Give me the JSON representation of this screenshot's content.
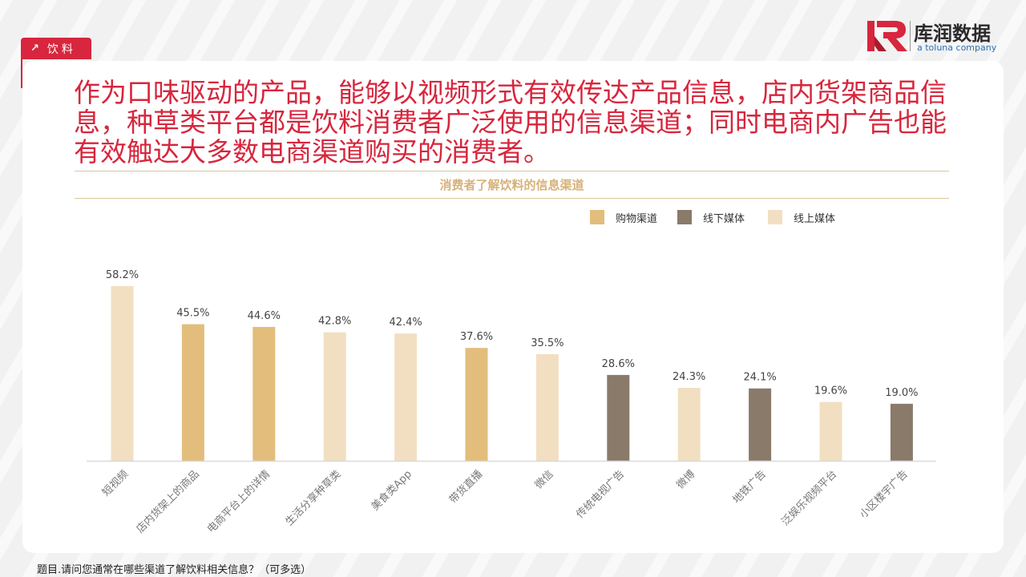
{
  "tag": {
    "label": "饮料"
  },
  "logo": {
    "brand": "库润数据",
    "sub": "a toluna company"
  },
  "headline": "作为口味驱动的产品，能够以视频形式有效传达产品信息，店内货架商品信息，种草类平台都是饮料消费者广泛使用的信息渠道；同时电商内广告也能有效触达大多数电商渠道购买的消费者。",
  "footnote": "题目.请问您通常在哪些渠道了解饮料相关信息？（可多选）",
  "colors": {
    "accent": "#d7263d",
    "shopping": "#e2bd7c",
    "offline": "#8a7a6a",
    "online": "#f2dfc2"
  },
  "chart_data": {
    "type": "bar",
    "title": "消费者了解饮料的信息渠道",
    "legend": [
      {
        "name": "购物渠道",
        "color": "#e2bd7c"
      },
      {
        "name": "线下媒体",
        "color": "#8a7a6a"
      },
      {
        "name": "线上媒体",
        "color": "#f2dfc2"
      }
    ],
    "categories": [
      "短视频",
      "店内货架上的商品",
      "电商平台上的详情",
      "生活分享种草类",
      "美食类App",
      "带货直播",
      "微信",
      "传统电视广告",
      "微博",
      "地铁广告",
      "泛娱乐视频平台",
      "小区楼宇广告"
    ],
    "values": [
      58.2,
      45.5,
      44.6,
      42.8,
      42.4,
      37.6,
      35.5,
      28.6,
      24.3,
      24.1,
      19.6,
      19.0
    ],
    "labels": [
      "58.2%",
      "45.5%",
      "44.6%",
      "42.8%",
      "42.4%",
      "37.6%",
      "35.5%",
      "28.6%",
      "24.3%",
      "24.1%",
      "19.6%",
      "19.0%"
    ],
    "groups": [
      "线上媒体",
      "购物渠道",
      "购物渠道",
      "线上媒体",
      "线上媒体",
      "购物渠道",
      "线上媒体",
      "线下媒体",
      "线上媒体",
      "线下媒体",
      "线上媒体",
      "线下媒体"
    ],
    "ylim": [
      0,
      65
    ],
    "unit": "%",
    "legend_position": "top-right",
    "grid": false
  }
}
